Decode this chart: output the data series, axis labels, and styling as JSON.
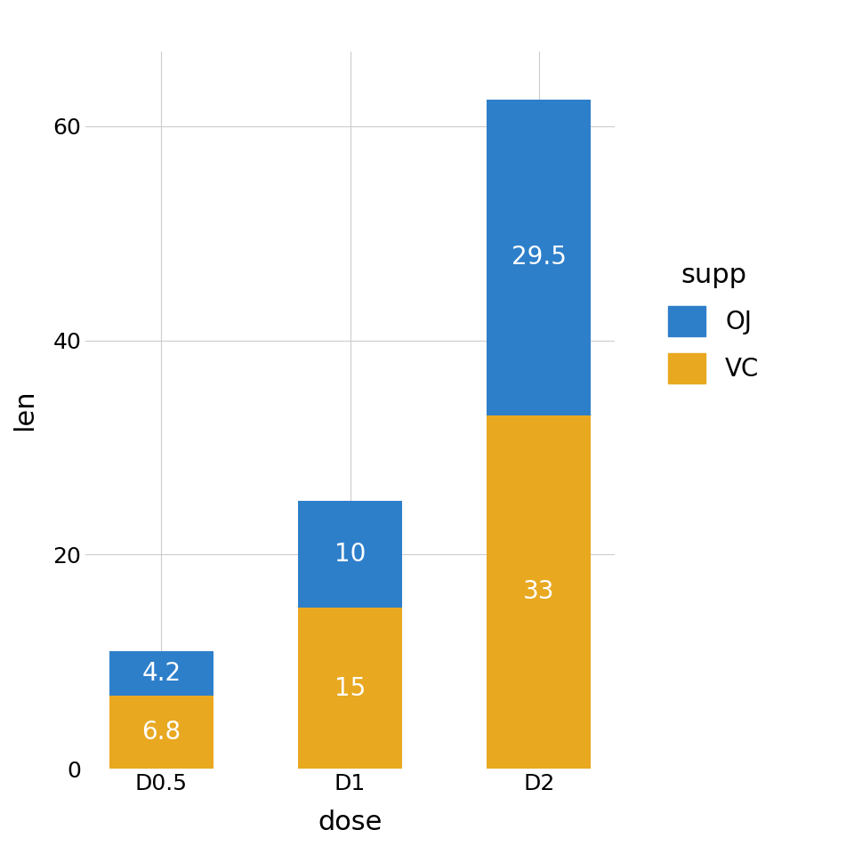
{
  "categories": [
    "D0.5",
    "D1",
    "D2"
  ],
  "vc_values": [
    6.8,
    15.0,
    33.0
  ],
  "oj_values": [
    4.2,
    10.0,
    29.5
  ],
  "vc_color": "#E8A820",
  "oj_color": "#2E7FCA",
  "xlabel": "dose",
  "ylabel": "len",
  "legend_title": "supp",
  "legend_labels": [
    "OJ",
    "VC"
  ],
  "vc_labels": [
    "6.8",
    "15",
    "33"
  ],
  "oj_labels": [
    "4.2",
    "10",
    "29.5"
  ],
  "ylim": [
    0,
    67
  ],
  "yticks": [
    0,
    20,
    40,
    60
  ],
  "label_color": "white",
  "label_fontsize": 20,
  "axis_label_fontsize": 22,
  "tick_fontsize": 18,
  "legend_fontsize": 20,
  "legend_title_fontsize": 22,
  "bg_color": "#FFFFFF",
  "panel_bg": "#FFFFFF",
  "grid_color": "#CCCCCC",
  "bar_width": 0.55
}
